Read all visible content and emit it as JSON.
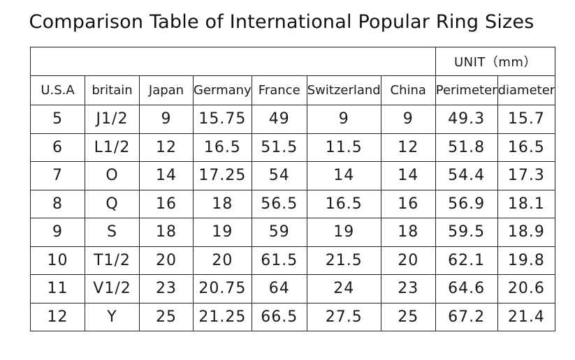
{
  "title": "Comparison Table of International Popular Ring Sizes",
  "unit_label": "UNIT（mm）",
  "headers": [
    "U.S.A",
    "britain",
    "Japan",
    "Germany",
    "France",
    "Switzerland",
    "China",
    "Perimeter",
    "diameter"
  ],
  "rows": [
    [
      "5",
      "J1/2",
      "9",
      "15.75",
      "49",
      "9",
      "9",
      "49.3",
      "15.7"
    ],
    [
      "6",
      "L1/2",
      "12",
      "16.5",
      "51.5",
      "11.5",
      "12",
      "51.8",
      "16.5"
    ],
    [
      "7",
      "O",
      "14",
      "17.25",
      "54",
      "14",
      "14",
      "54.4",
      "17.3"
    ],
    [
      "8",
      "Q",
      "16",
      "18",
      "56.5",
      "16.5",
      "16",
      "56.9",
      "18.1"
    ],
    [
      "9",
      "S",
      "18",
      "19",
      "59",
      "19",
      "18",
      "59.5",
      "18.9"
    ],
    [
      "10",
      "T1/2",
      "20",
      "20",
      "61.5",
      "21.5",
      "20",
      "62.1",
      "19.8"
    ],
    [
      "11",
      "V1/2",
      "23",
      "20.75",
      "64",
      "24",
      "23",
      "64.6",
      "20.6"
    ],
    [
      "12",
      "Y",
      "25",
      "21.25",
      "66.5",
      "27.5",
      "25",
      "67.2",
      "21.4"
    ]
  ]
}
